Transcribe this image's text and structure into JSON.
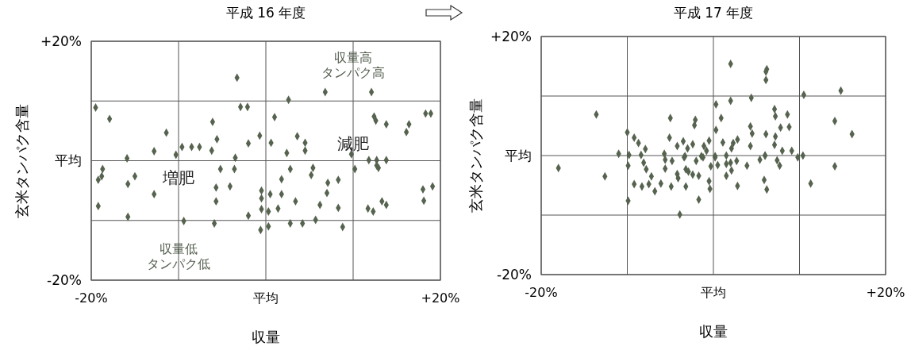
{
  "chart_data": [
    {
      "type": "scatter",
      "title": "平成 16 年度",
      "xlabel": "収量",
      "ylabel": "玄米タンパク含量",
      "xlim": [
        -20,
        20
      ],
      "ylim": [
        -20,
        20
      ],
      "xticks": [
        {
          "value": -20,
          "label": "-20%"
        },
        {
          "value": -10,
          "label": null
        },
        {
          "value": 0,
          "label": "平均"
        },
        {
          "value": 10,
          "label": null
        },
        {
          "value": 20,
          "label": "+20%"
        }
      ],
      "yticks": [
        {
          "value": -20,
          "label": "-20%"
        },
        {
          "value": -10,
          "label": null
        },
        {
          "value": 0,
          "label": "平均"
        },
        {
          "value": 10,
          "label": null
        },
        {
          "value": 20,
          "label": "+20%"
        }
      ],
      "grid": true,
      "marker": "diamond",
      "annotations": [
        "収量高タンパク高",
        "減肥",
        "増肥",
        "収量低タンパク低"
      ],
      "series": [
        {
          "color": "#56634f",
          "x": [
            -3.3,
            -19.5,
            -2.9,
            -2.1,
            -17.9,
            -6.1,
            -11.4,
            -0.7,
            -5.6,
            -2.0,
            -9.6,
            -8.5,
            -7.6,
            -12.8,
            -10.3,
            -6.2,
            -15.9,
            -3.5,
            2.6,
            6.8,
            12.1,
            1.0,
            12.4,
            18.3,
            18.9,
            12.6,
            13.8,
            16.4,
            16.1,
            3.6,
            4.5,
            4.5,
            2.4,
            0.6,
            9.8,
            11.8,
            12.7,
            13.8,
            -18.7,
            -18.8,
            -19.2,
            -15.0,
            -15.8,
            -5.2,
            -3.6,
            -5.7,
            -4.1,
            -12.8,
            -19.2,
            -5.7,
            -15.8,
            -2.0,
            -9.4,
            -5.9,
            -0.6,
            -0.5,
            -0.5,
            -0.5,
            2.8,
            5.4,
            5.2,
            1.8,
            7.1,
            8.3,
            0.5,
            1.8,
            7.0,
            3.4,
            6.2,
            8.3,
            1.4,
            0.3,
            2.8,
            4.2,
            5.7,
            0.3,
            8.8,
            10.2,
            12.7,
            12.9,
            18.0,
            19.1,
            18.1,
            13.3,
            13.8,
            11.7,
            12.3
          ],
          "values": [
            13.9,
            8.9,
            9.0,
            9.0,
            7.0,
            6.5,
            4.7,
            4.2,
            3.6,
            2.9,
            2.3,
            2.3,
            2.3,
            1.6,
            1.0,
            1.7,
            0.4,
            0.5,
            10.2,
            11.5,
            11.5,
            7.3,
            7.4,
            7.9,
            7.9,
            6.7,
            6.1,
            6.1,
            4.8,
            4.1,
            3.0,
            1.7,
            1.3,
            3.0,
            1.1,
            0.1,
            0.1,
            0.1,
            -1.4,
            -2.6,
            -3.2,
            -2.6,
            -3.9,
            -1.4,
            -1.4,
            -4.5,
            -4.3,
            -5.6,
            -7.6,
            -6.8,
            -9.4,
            -9.2,
            -10.1,
            -10.5,
            -11.6,
            -5.0,
            -6.3,
            -8.1,
            -1.4,
            -1.2,
            -2.4,
            -3.1,
            -3.7,
            -3.2,
            -5.6,
            -5.6,
            -5.4,
            -6.8,
            -7.4,
            -7.9,
            -8.0,
            -8.5,
            -10.5,
            -10.5,
            -9.9,
            -11.0,
            -11.1,
            -1.4,
            -0.8,
            -1.2,
            -4.8,
            -4.3,
            -6.7,
            -6.8,
            -7.4,
            -8.0,
            -8.5
          ]
        }
      ]
    },
    {
      "type": "scatter",
      "title": "平成 17 年度",
      "xlabel": "収量",
      "ylabel": "玄米タンパク含量",
      "xlim": [
        -20,
        20
      ],
      "ylim": [
        -20,
        20
      ],
      "xticks": [
        {
          "value": -20,
          "label": "-20%"
        },
        {
          "value": -10,
          "label": null
        },
        {
          "value": 0,
          "label": "平均"
        },
        {
          "value": 10,
          "label": null
        },
        {
          "value": 20,
          "label": "+20%"
        }
      ],
      "yticks": [
        {
          "value": -20,
          "label": "-20%"
        },
        {
          "value": -10,
          "label": null
        },
        {
          "value": 0,
          "label": "平均"
        },
        {
          "value": 10,
          "label": null
        },
        {
          "value": 20,
          "label": "+20%"
        }
      ],
      "grid": true,
      "marker": "diamond",
      "series": [
        {
          "color": "#56634f",
          "x": [
            2.0,
            6.2,
            6.1,
            6.1,
            14.8,
            10.5,
            4.4,
            2.0,
            0.3,
            -13.6,
            7.1,
            7.2,
            8.6,
            0.9,
            -5.0,
            -2.1,
            -2.2,
            14.1,
            4.3,
            7.8,
            8.8,
            16.1,
            0.3,
            4.5,
            6.1,
            7.2,
            -10.0,
            -9.2,
            -8.7,
            -7.9,
            -5.1,
            -4.2,
            -3.5,
            -3.0,
            -2.4,
            -1.1,
            -0.8,
            -0.5,
            1.1,
            2.3,
            2.1,
            2.8,
            4.3,
            7.1,
            8.0,
            9.1,
            -11.0,
            -9.8,
            -8.4,
            -5.7,
            -3.3,
            -1.4,
            0.2,
            1.5,
            6.0,
            10.4,
            -18.0,
            -12.6,
            -9.9,
            -9.9,
            -8.1,
            -7.8,
            -7.2,
            -9.2,
            -8.3,
            -7.5,
            -6.8,
            -6.1,
            -4.9,
            -5.6,
            -5.6,
            -4.8,
            -4.2,
            -4.1,
            -3.4,
            -3.2,
            -2.9,
            -2.4,
            -1.7,
            -3.2,
            -2.0,
            -1.2,
            -1.7,
            -3.9,
            -0.5,
            -0.4,
            -0.3,
            0.5,
            0.2,
            1.5,
            2.0,
            2.7,
            2.1,
            1.5,
            3.9,
            2.8,
            5.4,
            6.0,
            5.9,
            6.2,
            7.4,
            7.7,
            9.8,
            11.3,
            14.1
          ],
          "values": [
            15.4,
            14.5,
            14.1,
            12.7,
            10.9,
            10.2,
            9.7,
            9.2,
            8.6,
            6.9,
            7.8,
            6.6,
            6.9,
            6.3,
            6.3,
            6.0,
            5.1,
            5.8,
            4.9,
            4.7,
            4.8,
            3.6,
            4.3,
            3.7,
            3.6,
            3.2,
            3.9,
            3.0,
            2.1,
            1.1,
            3.0,
            1.6,
            2.4,
            1.2,
            1.9,
            1.6,
            0.8,
            2.5,
            2.2,
            2.1,
            1.2,
            2.7,
            1.6,
            1.8,
            0.8,
            0.8,
            0.3,
            0.1,
            0.1,
            0.3,
            -0.1,
            -0.1,
            -0.1,
            0,
            0,
            0,
            -2.1,
            -3.5,
            -1.7,
            -7.6,
            -1.2,
            -2.3,
            -3.5,
            -4.8,
            -5.2,
            -4.8,
            -6.0,
            -4.7,
            -5.2,
            -0.7,
            -2.2,
            -0.9,
            -3.1,
            -3.8,
            -0.3,
            -2.3,
            -2.7,
            -3.2,
            -3.4,
            -5.2,
            -0.9,
            -0.3,
            -7.4,
            -9.9,
            -4.3,
            -5.6,
            -1.8,
            -1.6,
            -0.3,
            -1.4,
            -1.2,
            -0.9,
            -2.5,
            -3.4,
            -1.7,
            -5.1,
            -0.7,
            0,
            -4.1,
            -5.7,
            -0.8,
            -1.7,
            -0.3,
            -4.7,
            -1.8
          ]
        }
      ]
    }
  ]
}
